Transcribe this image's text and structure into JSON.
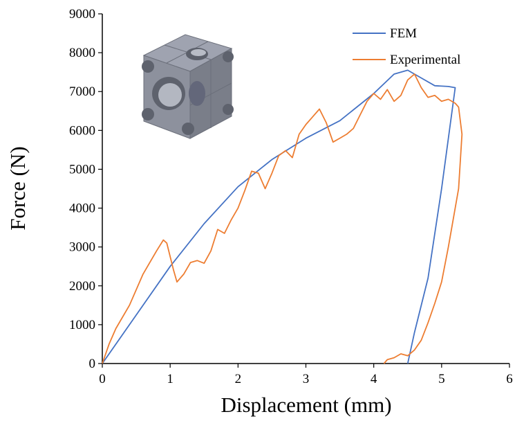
{
  "chart_data": {
    "type": "line",
    "xlabel": "Displacement (mm)",
    "ylabel": "Force (N)",
    "xlim": [
      0,
      6
    ],
    "ylim": [
      0,
      9000
    ],
    "xticks": [
      "0",
      "1",
      "2",
      "3",
      "4",
      "5",
      "6"
    ],
    "yticks": [
      "0",
      "1000",
      "2000",
      "3000",
      "4000",
      "5000",
      "6000",
      "7000",
      "8000",
      "9000"
    ],
    "grid": false,
    "legend_position": "top-right",
    "inset": "gray cubic lattice unit cell with spherical cavities (top-left)",
    "series": [
      {
        "name": "FEM",
        "color": "#4472C4",
        "points": [
          [
            0,
            0
          ],
          [
            0.5,
            1250
          ],
          [
            1.0,
            2500
          ],
          [
            1.5,
            3600
          ],
          [
            2.0,
            4550
          ],
          [
            2.5,
            5250
          ],
          [
            3.0,
            5800
          ],
          [
            3.5,
            6250
          ],
          [
            4.0,
            6950
          ],
          [
            4.3,
            7450
          ],
          [
            4.5,
            7550
          ],
          [
            4.7,
            7350
          ],
          [
            4.9,
            7150
          ],
          [
            5.1,
            7130
          ],
          [
            5.2,
            7100
          ],
          [
            5.0,
            4500
          ],
          [
            4.8,
            2200
          ],
          [
            4.6,
            800
          ],
          [
            4.5,
            0
          ]
        ]
      },
      {
        "name": "Experimental",
        "color": "#ED7D31",
        "points": [
          [
            0,
            0
          ],
          [
            0.1,
            500
          ],
          [
            0.2,
            900
          ],
          [
            0.4,
            1500
          ],
          [
            0.6,
            2300
          ],
          [
            0.8,
            2900
          ],
          [
            0.9,
            3180
          ],
          [
            0.95,
            3100
          ],
          [
            1.05,
            2400
          ],
          [
            1.1,
            2100
          ],
          [
            1.2,
            2300
          ],
          [
            1.3,
            2600
          ],
          [
            1.4,
            2650
          ],
          [
            1.5,
            2580
          ],
          [
            1.6,
            2900
          ],
          [
            1.7,
            3450
          ],
          [
            1.8,
            3350
          ],
          [
            1.9,
            3700
          ],
          [
            2.0,
            4000
          ],
          [
            2.1,
            4450
          ],
          [
            2.2,
            4950
          ],
          [
            2.3,
            4900
          ],
          [
            2.4,
            4500
          ],
          [
            2.5,
            4900
          ],
          [
            2.6,
            5350
          ],
          [
            2.7,
            5480
          ],
          [
            2.8,
            5300
          ],
          [
            2.9,
            5900
          ],
          [
            3.0,
            6150
          ],
          [
            3.1,
            6350
          ],
          [
            3.2,
            6550
          ],
          [
            3.3,
            6200
          ],
          [
            3.4,
            5700
          ],
          [
            3.5,
            5800
          ],
          [
            3.6,
            5900
          ],
          [
            3.7,
            6050
          ],
          [
            3.8,
            6400
          ],
          [
            3.9,
            6750
          ],
          [
            4.0,
            6950
          ],
          [
            4.1,
            6800
          ],
          [
            4.2,
            7050
          ],
          [
            4.3,
            6750
          ],
          [
            4.4,
            6900
          ],
          [
            4.5,
            7300
          ],
          [
            4.6,
            7450
          ],
          [
            4.7,
            7100
          ],
          [
            4.8,
            6850
          ],
          [
            4.9,
            6900
          ],
          [
            5.0,
            6750
          ],
          [
            5.1,
            6800
          ],
          [
            5.2,
            6700
          ],
          [
            5.25,
            6600
          ],
          [
            5.3,
            5900
          ],
          [
            5.25,
            4500
          ],
          [
            5.1,
            3000
          ],
          [
            5.0,
            2100
          ],
          [
            4.9,
            1550
          ],
          [
            4.8,
            1050
          ],
          [
            4.7,
            600
          ],
          [
            4.6,
            350
          ],
          [
            4.5,
            200
          ],
          [
            4.4,
            250
          ],
          [
            4.3,
            150
          ],
          [
            4.2,
            100
          ],
          [
            4.15,
            0
          ]
        ]
      }
    ]
  }
}
